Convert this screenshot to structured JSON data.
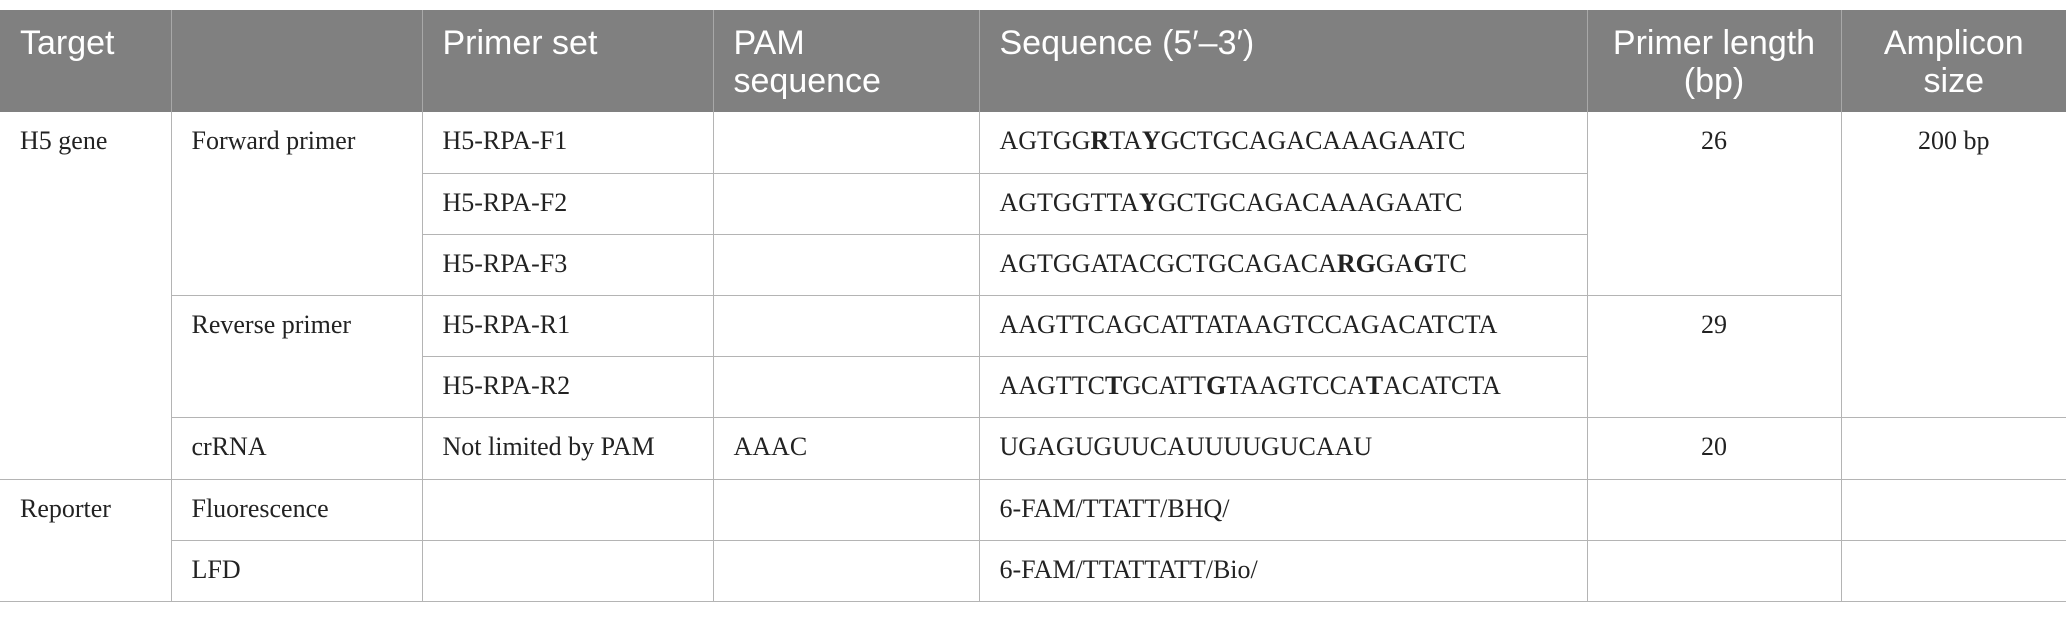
{
  "header": {
    "target": "Target",
    "blank": "",
    "primer_set": "Primer set",
    "pam": "PAM sequence",
    "sequence": "Sequence (5′–3′)",
    "primer_length": "Primer length (bp)",
    "amplicon": "Amplicon size"
  },
  "groups": {
    "h5": "H5 gene",
    "reporter": "Reporter"
  },
  "subgroups": {
    "forward": "Forward primer",
    "reverse": "Reverse primer",
    "crrna": "crRNA",
    "fluorescence": "Fluorescence",
    "lfd": "LFD"
  },
  "rows": {
    "f1": {
      "primer_set": "H5-RPA-F1",
      "pam": "",
      "sequence": [
        [
          "AGTGG",
          false
        ],
        [
          "R",
          true
        ],
        [
          "TA",
          false
        ],
        [
          "Y",
          true
        ],
        [
          "GCTGCAGACAAAGAATC",
          false
        ]
      ]
    },
    "f2": {
      "primer_set": "H5-RPA-F2",
      "pam": "",
      "sequence": [
        [
          "AGTGGTTA",
          false
        ],
        [
          "Y",
          true
        ],
        [
          "GCTGCAGACAAAGAATC",
          false
        ]
      ]
    },
    "f3": {
      "primer_set": "H5-RPA-F3",
      "pam": "",
      "sequence": [
        [
          "AGTGGATACGCTGCAGACA",
          false
        ],
        [
          "RG",
          true
        ],
        [
          "GA",
          false
        ],
        [
          "G",
          true
        ],
        [
          "TC",
          false
        ]
      ]
    },
    "r1": {
      "primer_set": "H5-RPA-R1",
      "pam": "",
      "sequence": [
        [
          "AAGTTCAGCATTATAAGTCCAGACATCTA",
          false
        ]
      ]
    },
    "r2": {
      "primer_set": "H5-RPA-R2",
      "pam": "",
      "sequence": [
        [
          "AAGTTC",
          false
        ],
        [
          "T",
          true
        ],
        [
          "GCATT",
          false
        ],
        [
          "G",
          true
        ],
        [
          "TAAGTCCA",
          false
        ],
        [
          "T",
          true
        ],
        [
          "ACATCTA",
          false
        ]
      ]
    },
    "crrna": {
      "primer_set": "Not limited by PAM",
      "pam": "AAAC",
      "sequence": [
        [
          "UGAGUGUUCAUUUUGUCAAU",
          false
        ]
      ],
      "length": "20",
      "amplicon": ""
    },
    "fluorescence": {
      "primer_set": "",
      "pam": "",
      "sequence": [
        [
          "6-FAM/TTATT/BHQ/",
          false
        ]
      ],
      "length": "",
      "amplicon": ""
    },
    "lfd": {
      "primer_set": "",
      "pam": "",
      "sequence": [
        [
          "6-FAM/TTATTATT/Bio/",
          false
        ]
      ],
      "length": "",
      "amplicon": ""
    }
  },
  "merged": {
    "forward_length": "26",
    "reverse_length": "29",
    "primer_amplicon": "200 bp"
  }
}
